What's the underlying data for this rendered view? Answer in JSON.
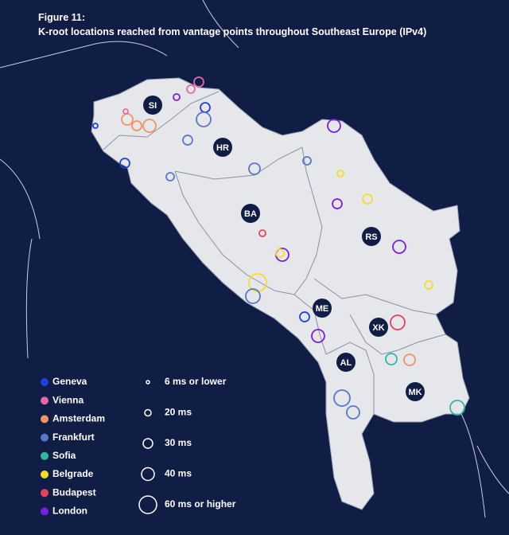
{
  "header": {
    "figure": "Figure 11:",
    "title": "K-root locations reached from vantage points throughout Southeast Europe (IPv4)"
  },
  "countries": [
    "SI",
    "HR",
    "BA",
    "RS",
    "ME",
    "XK",
    "AL",
    "MK"
  ],
  "legend": {
    "locations": [
      {
        "name": "Geneva",
        "color": "#1f3fe0"
      },
      {
        "name": "Vienna",
        "color": "#e66aa6"
      },
      {
        "name": "Amsterdam",
        "color": "#ee9466"
      },
      {
        "name": "Frankfurt",
        "color": "#5a78c8"
      },
      {
        "name": "Sofia",
        "color": "#2fb8a0"
      },
      {
        "name": "Belgrade",
        "color": "#f5dc28"
      },
      {
        "name": "Budapest",
        "color": "#e8405a"
      },
      {
        "name": "London",
        "color": "#7a1ee6"
      }
    ],
    "sizes": [
      "6 ms or lower",
      "20 ms",
      "30 ms",
      "40 ms",
      "60 ms or higher"
    ]
  }
}
